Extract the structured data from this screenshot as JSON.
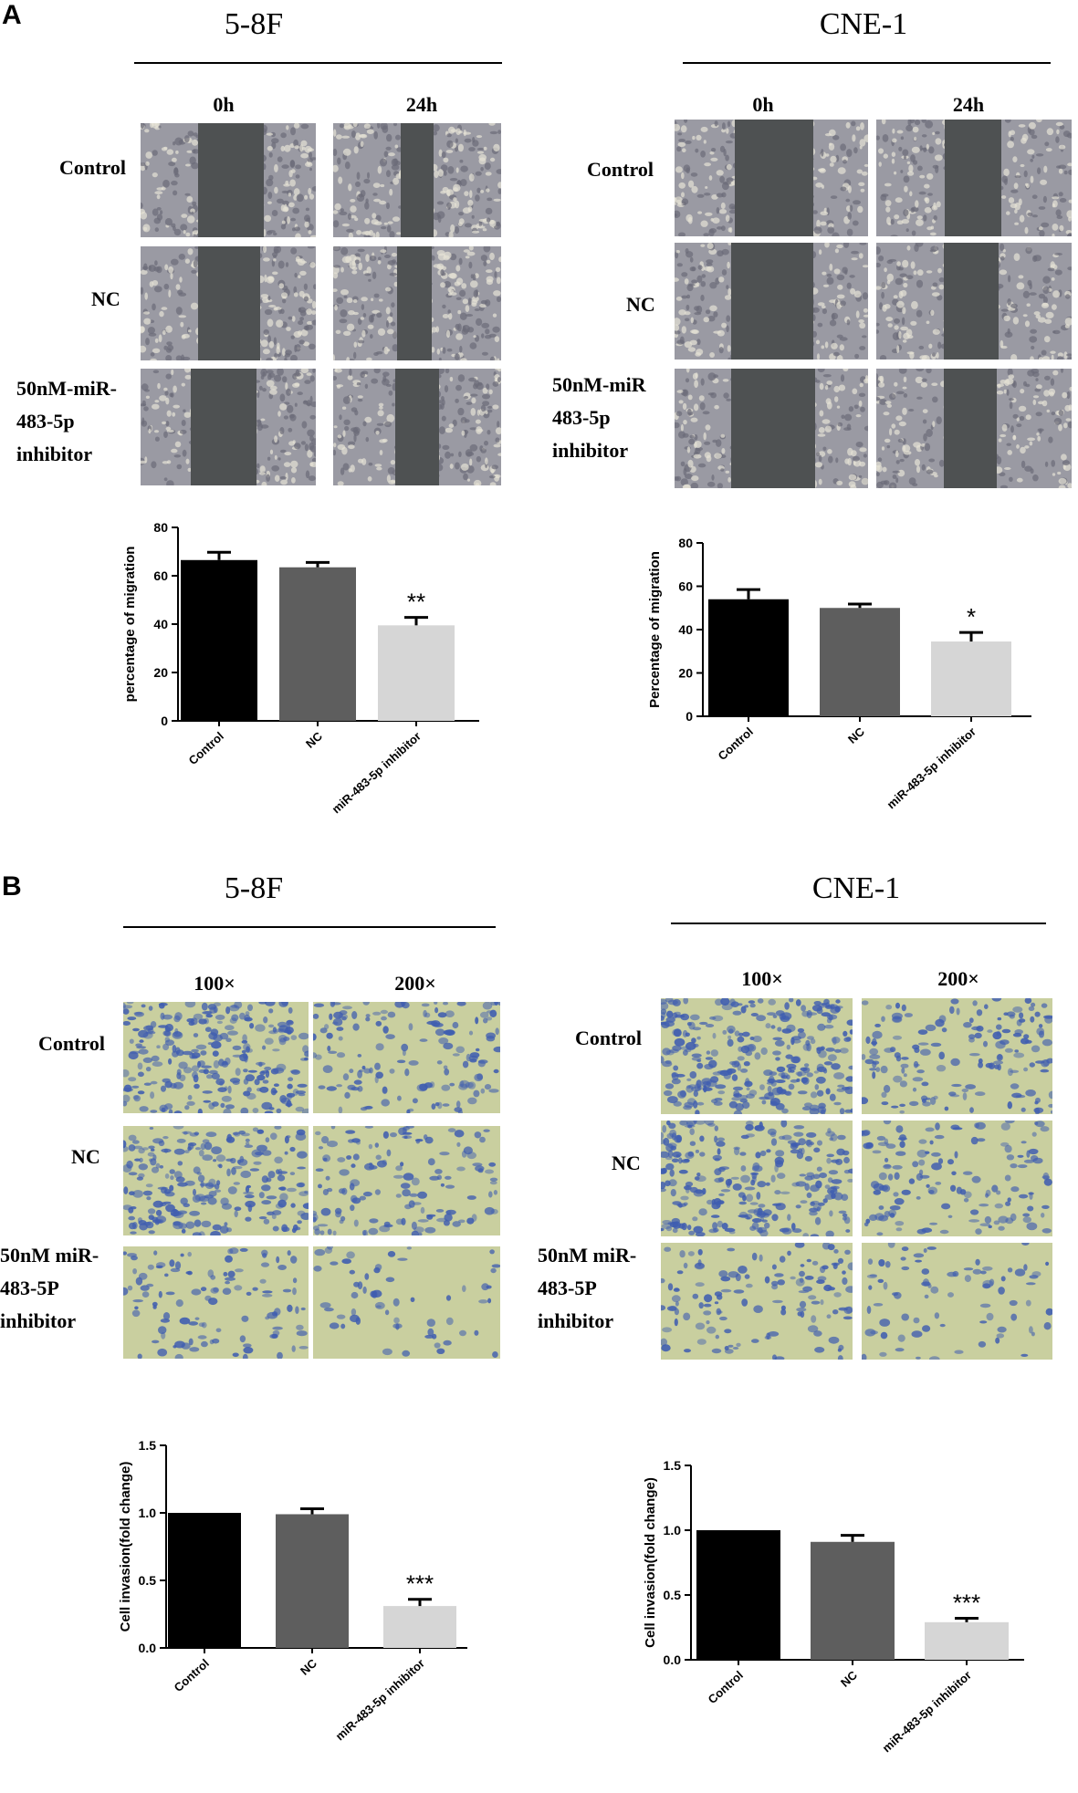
{
  "panels": {
    "A": {
      "letter": "A",
      "left": {
        "title": "5-8F",
        "col_headers": [
          "0h",
          "24h"
        ],
        "row_labels": [
          [
            "Control"
          ],
          [
            "NC"
          ],
          [
            "50nM-miR-",
            "483-5p",
            "inhibitor"
          ]
        ]
      },
      "right": {
        "title": "CNE-1",
        "col_headers": [
          "0h",
          "24h"
        ],
        "row_labels": [
          [
            "Control"
          ],
          [
            "NC"
          ],
          [
            "50nM-miR",
            "483-5p",
            "inhibitor"
          ]
        ]
      }
    },
    "B": {
      "letter": "B",
      "left": {
        "title": "5-8F",
        "col_headers": [
          "100×",
          "200×"
        ],
        "row_labels": [
          [
            "Control"
          ],
          [
            "NC"
          ],
          [
            "50nM miR-",
            "483-5P",
            "inhibitor"
          ]
        ]
      },
      "right": {
        "title": "CNE-1",
        "col_headers": [
          "100×",
          "200×"
        ],
        "row_labels": [
          [
            "Control"
          ],
          [
            "NC"
          ],
          [
            "50nM miR-",
            "483-5P",
            "inhibitor"
          ]
        ]
      }
    }
  },
  "colors": {
    "control_bar": "#000000",
    "nc_bar": "#5e5e5e",
    "inhibitor_bar": "#d6d6d6",
    "wound_bg": "#9a9aa3",
    "wound_gap": "#4e5152",
    "transwell_bg": "#c9cf9f",
    "transwell_cell": "#3f5db0"
  },
  "chart_data": [
    {
      "type": "bar",
      "panel": "A-5-8F",
      "categories": [
        "Control",
        "NC",
        "miR-483-5p inhibitor"
      ],
      "values": [
        66.5,
        63.5,
        39.5
      ],
      "errors": [
        3.2,
        2.0,
        3.3
      ],
      "significance": [
        "",
        "",
        "**"
      ],
      "ylabel": "percentage of migration",
      "ylim": [
        0,
        80
      ],
      "yticks": [
        0,
        20,
        40,
        60,
        80
      ],
      "ytick_labels": [
        "0",
        "20",
        "40",
        "60",
        "80"
      ]
    },
    {
      "type": "bar",
      "panel": "A-CNE-1",
      "categories": [
        "Control",
        "NC",
        "miR-483-5p inhibitor"
      ],
      "values": [
        54,
        50,
        34.5
      ],
      "errors": [
        4.5,
        1.8,
        4.2
      ],
      "significance": [
        "",
        "",
        "*"
      ],
      "ylabel": "Percentage of migration",
      "ylim": [
        0,
        80
      ],
      "yticks": [
        0,
        20,
        40,
        60,
        80
      ],
      "ytick_labels": [
        "0",
        "20",
        "40",
        "60",
        "80"
      ]
    },
    {
      "type": "bar",
      "panel": "B-5-8F",
      "categories": [
        "Control",
        "NC",
        "miR-483-5p inhibitor"
      ],
      "values": [
        1.0,
        0.99,
        0.31
      ],
      "errors": [
        0.0,
        0.04,
        0.05
      ],
      "significance": [
        "",
        "",
        "***"
      ],
      "ylabel": "Cell invasion(fold change)",
      "ylim": [
        0,
        1.5
      ],
      "yticks": [
        0,
        0.5,
        1.0,
        1.5
      ],
      "ytick_labels": [
        "0.0",
        "0.5",
        "1.0",
        "1.5"
      ]
    },
    {
      "type": "bar",
      "panel": "B-CNE-1",
      "categories": [
        "Control",
        "NC",
        "miR-483-5p inhibitor"
      ],
      "values": [
        1.0,
        0.91,
        0.29
      ],
      "errors": [
        0.0,
        0.05,
        0.03
      ],
      "significance": [
        "",
        "",
        "***"
      ],
      "ylabel": "Cell invasion(fold change)",
      "ylim": [
        0,
        1.5
      ],
      "yticks": [
        0,
        0.5,
        1.0,
        1.5
      ],
      "ytick_labels": [
        "0.0",
        "0.5",
        "1.0",
        "1.5"
      ]
    }
  ]
}
